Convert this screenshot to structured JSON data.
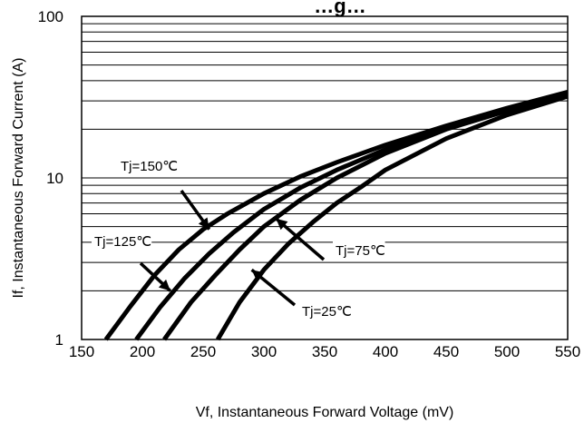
{
  "chart_data": {
    "type": "line",
    "title": "…g…",
    "xlabel": "Vf, Instantaneous Forward  Voltage (mV)",
    "ylabel": "If, Instantaneous Forward Current (A)",
    "xlim": [
      150,
      550
    ],
    "ylim": [
      1,
      100
    ],
    "yscale": "log",
    "grid": true,
    "xticks": [
      "150",
      "200",
      "250",
      "300",
      "350",
      "400",
      "450",
      "500",
      "550"
    ],
    "yticks": [
      "1",
      "10",
      "100"
    ],
    "series": [
      {
        "name": "Tj=150℃",
        "x": [
          170,
          190,
          210,
          230,
          250,
          270,
          300,
          330,
          360,
          400,
          450,
          500,
          550
        ],
        "y": [
          1.0,
          1.6,
          2.5,
          3.6,
          4.8,
          6.0,
          8.0,
          10.2,
          12.5,
          16.0,
          21.0,
          27.0,
          34.0
        ]
      },
      {
        "name": "Tj=125℃",
        "x": [
          195,
          215,
          235,
          255,
          275,
          300,
          330,
          360,
          400,
          450,
          500,
          550
        ],
        "y": [
          1.0,
          1.6,
          2.4,
          3.4,
          4.6,
          6.4,
          8.7,
          11.2,
          15.0,
          20.5,
          26.5,
          33.0
        ]
      },
      {
        "name": "Tj=75℃",
        "x": [
          218,
          240,
          260,
          280,
          300,
          330,
          360,
          400,
          450,
          500,
          550
        ],
        "y": [
          1.0,
          1.7,
          2.5,
          3.6,
          5.0,
          7.3,
          10.0,
          14.2,
          20.0,
          26.0,
          32.5
        ]
      },
      {
        "name": "Tj=25℃",
        "x": [
          262,
          280,
          300,
          320,
          340,
          360,
          380,
          400,
          450,
          500,
          550
        ],
        "y": [
          1.0,
          1.7,
          2.7,
          3.9,
          5.3,
          7.0,
          8.8,
          11.2,
          17.5,
          24.5,
          32.0
        ]
      }
    ],
    "annotations": [
      {
        "text": "Tj=150℃",
        "data_x": 255,
        "data_y": 4.8
      },
      {
        "text": "Tj=125℃",
        "data_x": 223,
        "data_y": 2.0
      },
      {
        "text": "Tj=75℃",
        "data_x": 310,
        "data_y": 5.6
      },
      {
        "text": "Tj=25℃",
        "data_x": 290,
        "data_y": 2.7
      }
    ]
  }
}
